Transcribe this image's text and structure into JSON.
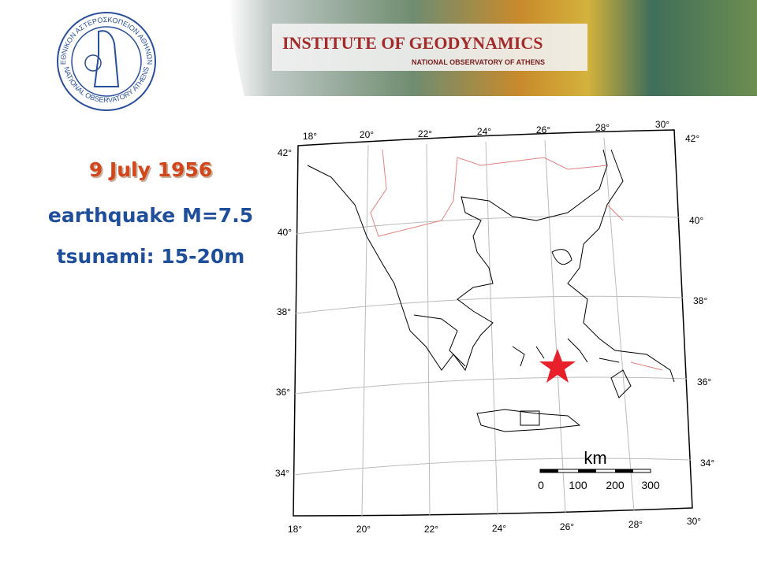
{
  "header": {
    "title": "INSTITUTE OF GEODYNAMICS",
    "subtitle": "NATIONAL OBSERVATORY OF ATHENS",
    "logo_text_greek": "ΕΘΝΙΚΟΝ ΑΣΤΕΡΟΣΚΟΠΕΙΟΝ ΑΘΗΝΩΝ",
    "logo_text_english": "NATIONAL OBSERVATORY ATHENS"
  },
  "event": {
    "date": "9 July 1956",
    "magnitude": "earthquake M=7.5",
    "tsunami": "tsunami: 15-20m"
  },
  "map": {
    "lon_labels": [
      "18°",
      "20°",
      "22°",
      "24°",
      "26°",
      "28°",
      "30°"
    ],
    "lat_labels": [
      "42°",
      "40°",
      "38°",
      "36°",
      "34°"
    ],
    "scale": {
      "unit": "km",
      "ticks": [
        "0",
        "100",
        "200",
        "300"
      ]
    }
  }
}
